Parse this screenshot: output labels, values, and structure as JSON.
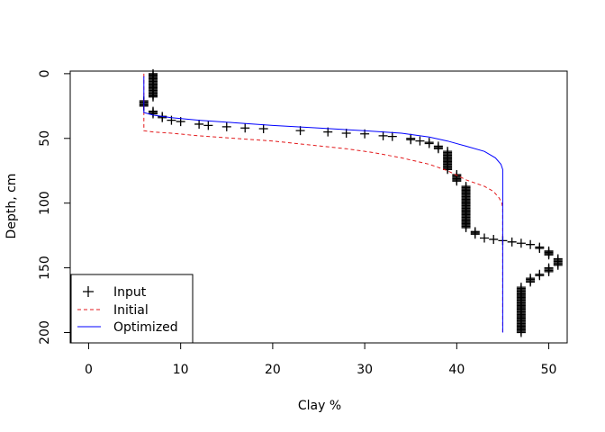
{
  "chart_data": {
    "type": "scatter",
    "title": "",
    "xlabel": "Clay %",
    "ylabel": "Depth, cm",
    "xlim": [
      -2,
      52
    ],
    "ylim": [
      208,
      -2
    ],
    "xticks": [
      0,
      10,
      20,
      30,
      40,
      50
    ],
    "yticks": [
      0,
      50,
      100,
      150,
      200
    ],
    "legend": {
      "position": "bottom-left",
      "entries": [
        {
          "label": "Input",
          "style": "plus",
          "color": "#000000"
        },
        {
          "label": "Initial",
          "style": "dashed",
          "color": "#e31a1c"
        },
        {
          "label": "Optimized",
          "style": "solid",
          "color": "#0000ff"
        }
      ]
    },
    "series": [
      {
        "name": "Input",
        "style": "plus",
        "color": "#000000",
        "points": [
          [
            7,
            0
          ],
          [
            7,
            1
          ],
          [
            7,
            2
          ],
          [
            7,
            3
          ],
          [
            7,
            4
          ],
          [
            7,
            5
          ],
          [
            7,
            6
          ],
          [
            7,
            7
          ],
          [
            7,
            8
          ],
          [
            7,
            9
          ],
          [
            7,
            10
          ],
          [
            7,
            11
          ],
          [
            7,
            12
          ],
          [
            7,
            13
          ],
          [
            7,
            14
          ],
          [
            7,
            15
          ],
          [
            7,
            16
          ],
          [
            7,
            17
          ],
          [
            7,
            18
          ],
          [
            6,
            21
          ],
          [
            6,
            22
          ],
          [
            6,
            23
          ],
          [
            6,
            24
          ],
          [
            6,
            25
          ],
          [
            7,
            29
          ],
          [
            7,
            30
          ],
          [
            7,
            31
          ],
          [
            8,
            33
          ],
          [
            8,
            34
          ],
          [
            9,
            36
          ],
          [
            10,
            37
          ],
          [
            12,
            39
          ],
          [
            13,
            40
          ],
          [
            15,
            41
          ],
          [
            17,
            42
          ],
          [
            19,
            42.5
          ],
          [
            23,
            44
          ],
          [
            26,
            45
          ],
          [
            28,
            46
          ],
          [
            30,
            46.5
          ],
          [
            32,
            48
          ],
          [
            33,
            48.5
          ],
          [
            35,
            50
          ],
          [
            35,
            51
          ],
          [
            36,
            52
          ],
          [
            37,
            53
          ],
          [
            37,
            54
          ],
          [
            38,
            56
          ],
          [
            38,
            57
          ],
          [
            38,
            58
          ],
          [
            39,
            60
          ],
          [
            39,
            61
          ],
          [
            39,
            62
          ],
          [
            39,
            63
          ],
          [
            39,
            64
          ],
          [
            39,
            65
          ],
          [
            39,
            66
          ],
          [
            39,
            67
          ],
          [
            39,
            68
          ],
          [
            39,
            69
          ],
          [
            39,
            70
          ],
          [
            39,
            71
          ],
          [
            39,
            72
          ],
          [
            39,
            73
          ],
          [
            39,
            74
          ],
          [
            40,
            78
          ],
          [
            40,
            79
          ],
          [
            40,
            80
          ],
          [
            40,
            81
          ],
          [
            40,
            82
          ],
          [
            40,
            83
          ],
          [
            41,
            87
          ],
          [
            41,
            88
          ],
          [
            41,
            89
          ],
          [
            41,
            90
          ],
          [
            41,
            91
          ],
          [
            41,
            92
          ],
          [
            41,
            93
          ],
          [
            41,
            94
          ],
          [
            41,
            95
          ],
          [
            41,
            96
          ],
          [
            41,
            97
          ],
          [
            41,
            98
          ],
          [
            41,
            99
          ],
          [
            41,
            100
          ],
          [
            41,
            101
          ],
          [
            41,
            102
          ],
          [
            41,
            103
          ],
          [
            41,
            104
          ],
          [
            41,
            105
          ],
          [
            41,
            106
          ],
          [
            41,
            107
          ],
          [
            41,
            108
          ],
          [
            41,
            109
          ],
          [
            41,
            110
          ],
          [
            41,
            111
          ],
          [
            41,
            112
          ],
          [
            41,
            113
          ],
          [
            41,
            114
          ],
          [
            41,
            115
          ],
          [
            41,
            116
          ],
          [
            41,
            117
          ],
          [
            41,
            118
          ],
          [
            41,
            119
          ],
          [
            42,
            122
          ],
          [
            42,
            123
          ],
          [
            42,
            124
          ],
          [
            43,
            127
          ],
          [
            44,
            128
          ],
          [
            45,
            129
          ],
          [
            46,
            130
          ],
          [
            47,
            131
          ],
          [
            48,
            132
          ],
          [
            49,
            134
          ],
          [
            49,
            135
          ],
          [
            50,
            137
          ],
          [
            50,
            138
          ],
          [
            50,
            139
          ],
          [
            50,
            140
          ],
          [
            51,
            143
          ],
          [
            51,
            144
          ],
          [
            51,
            145
          ],
          [
            51,
            146
          ],
          [
            51,
            147
          ],
          [
            51,
            148
          ],
          [
            50,
            150
          ],
          [
            50,
            151
          ],
          [
            50,
            152
          ],
          [
            50,
            153
          ],
          [
            49,
            155
          ],
          [
            49,
            156
          ],
          [
            48,
            158
          ],
          [
            48,
            159
          ],
          [
            48,
            160
          ],
          [
            48,
            161
          ],
          [
            47,
            165
          ],
          [
            47,
            166
          ],
          [
            47,
            167
          ],
          [
            47,
            168
          ],
          [
            47,
            169
          ],
          [
            47,
            170
          ],
          [
            47,
            171
          ],
          [
            47,
            172
          ],
          [
            47,
            173
          ],
          [
            47,
            174
          ],
          [
            47,
            175
          ],
          [
            47,
            176
          ],
          [
            47,
            177
          ],
          [
            47,
            178
          ],
          [
            47,
            179
          ],
          [
            47,
            180
          ],
          [
            47,
            181
          ],
          [
            47,
            182
          ],
          [
            47,
            183
          ],
          [
            47,
            184
          ],
          [
            47,
            185
          ],
          [
            47,
            186
          ],
          [
            47,
            187
          ],
          [
            47,
            188
          ],
          [
            47,
            189
          ],
          [
            47,
            190
          ],
          [
            47,
            191
          ],
          [
            47,
            192
          ],
          [
            47,
            193
          ],
          [
            47,
            194
          ],
          [
            47,
            195
          ],
          [
            47,
            196
          ],
          [
            47,
            197
          ],
          [
            47,
            198
          ],
          [
            47,
            199
          ],
          [
            47,
            200
          ]
        ]
      },
      {
        "name": "Initial",
        "style": "dashed",
        "color": "#e31a1c",
        "points": [
          [
            6,
            0
          ],
          [
            6,
            44
          ],
          [
            7,
            45
          ],
          [
            9,
            46
          ],
          [
            12,
            48
          ],
          [
            16,
            50
          ],
          [
            20,
            52
          ],
          [
            24,
            55
          ],
          [
            28,
            58
          ],
          [
            31,
            61
          ],
          [
            34,
            65
          ],
          [
            37,
            70
          ],
          [
            39,
            75
          ],
          [
            41,
            82
          ],
          [
            43,
            87
          ],
          [
            44,
            91
          ],
          [
            44.6,
            96
          ],
          [
            44.9,
            100
          ],
          [
            45,
            104
          ],
          [
            45,
            200
          ]
        ]
      },
      {
        "name": "Optimized",
        "style": "solid",
        "color": "#0000ff",
        "points": [
          [
            6,
            2
          ],
          [
            6,
            30
          ],
          [
            7,
            32
          ],
          [
            9,
            34
          ],
          [
            12,
            36
          ],
          [
            16,
            38
          ],
          [
            20,
            40
          ],
          [
            25,
            42
          ],
          [
            30,
            44
          ],
          [
            34,
            46
          ],
          [
            37,
            49
          ],
          [
            39,
            52
          ],
          [
            41,
            56
          ],
          [
            43,
            60
          ],
          [
            44.2,
            65
          ],
          [
            44.8,
            70
          ],
          [
            45,
            74
          ],
          [
            45,
            200
          ]
        ]
      }
    ]
  }
}
